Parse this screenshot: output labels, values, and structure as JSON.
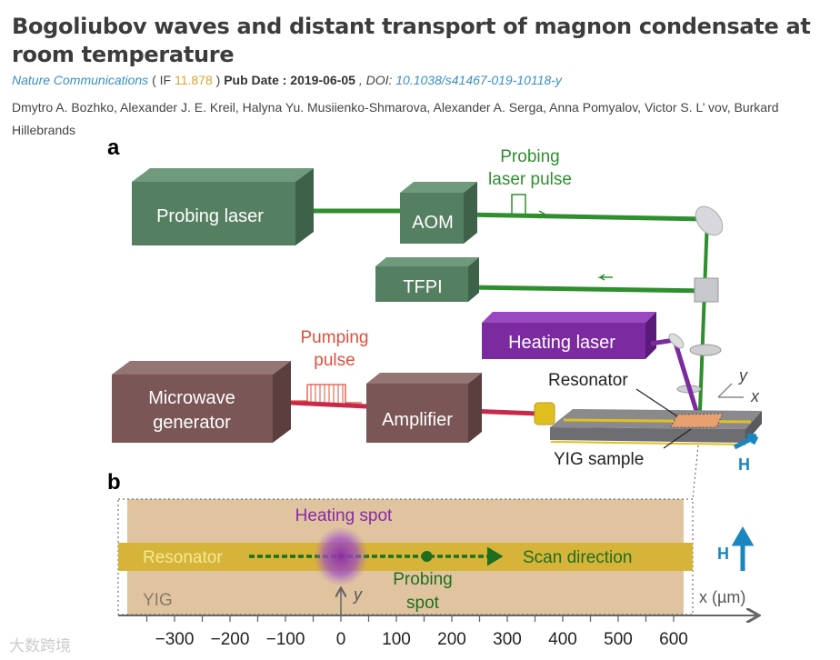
{
  "article": {
    "title": "Bogoliubov waves and distant transport of magnon condensate at room temperature",
    "journal": "Nature Communications",
    "if_prefix": "( IF",
    "impact_factor": "11.878",
    "if_suffix": ")",
    "pub_date_label": "Pub Date : 2019-06-05",
    "doi_label": ", DOI:",
    "doi": "10.1038/s41467-019-10118-y",
    "authors": "Dmytro A. Bozhko, Alexander J. E. Kreil, Halyna Yu. Musiienko-Shmarova, Alexander A. Serga, Anna Pomyalov, Victor S. L’   vov, Burkard Hillebrands"
  },
  "figure": {
    "panel_a": {
      "label": "a",
      "probing_laser": "Probing laser",
      "aom": "AOM",
      "tfpi": "TFPI",
      "heating_laser": "Heating laser",
      "microwave_line1": "Microwave",
      "microwave_line2": "generator",
      "amplifier": "Amplifier",
      "probing_pulse_line1": "Probing",
      "probing_pulse_line2": "laser pulse",
      "pumping_pulse_line1": "Pumping",
      "pumping_pulse_line2": "pulse",
      "resonator": "Resonator",
      "yig_sample": "YIG sample",
      "field": "H",
      "axis_x": "x",
      "axis_y": "y"
    },
    "panel_b": {
      "label": "b",
      "heating_spot": "Heating spot",
      "resonator": "Resonator",
      "scan_direction": "Scan direction",
      "probing_spot_line1": "Probing",
      "probing_spot_line2": "spot",
      "yig": "YIG",
      "axis_y": "y",
      "axis_x_label": "x (µm)",
      "field": "H",
      "tick_values": [
        -300,
        -200,
        -100,
        0,
        100,
        200,
        300,
        400,
        500,
        600
      ],
      "heating_spot_x_um": 0,
      "probing_spot_x_um": 155
    },
    "colors": {
      "beam": "#2f8f2f",
      "probe_box": "#4f7a5c",
      "heating_box": "#7b2aa0",
      "microwave_box": "#7a5656",
      "pump_red": "#e0503a",
      "field_blue": "#1a86c0",
      "yig_fill": "#e0c4a0",
      "resonator_band": "#d6b43a"
    }
  },
  "watermark": "大数跨境"
}
